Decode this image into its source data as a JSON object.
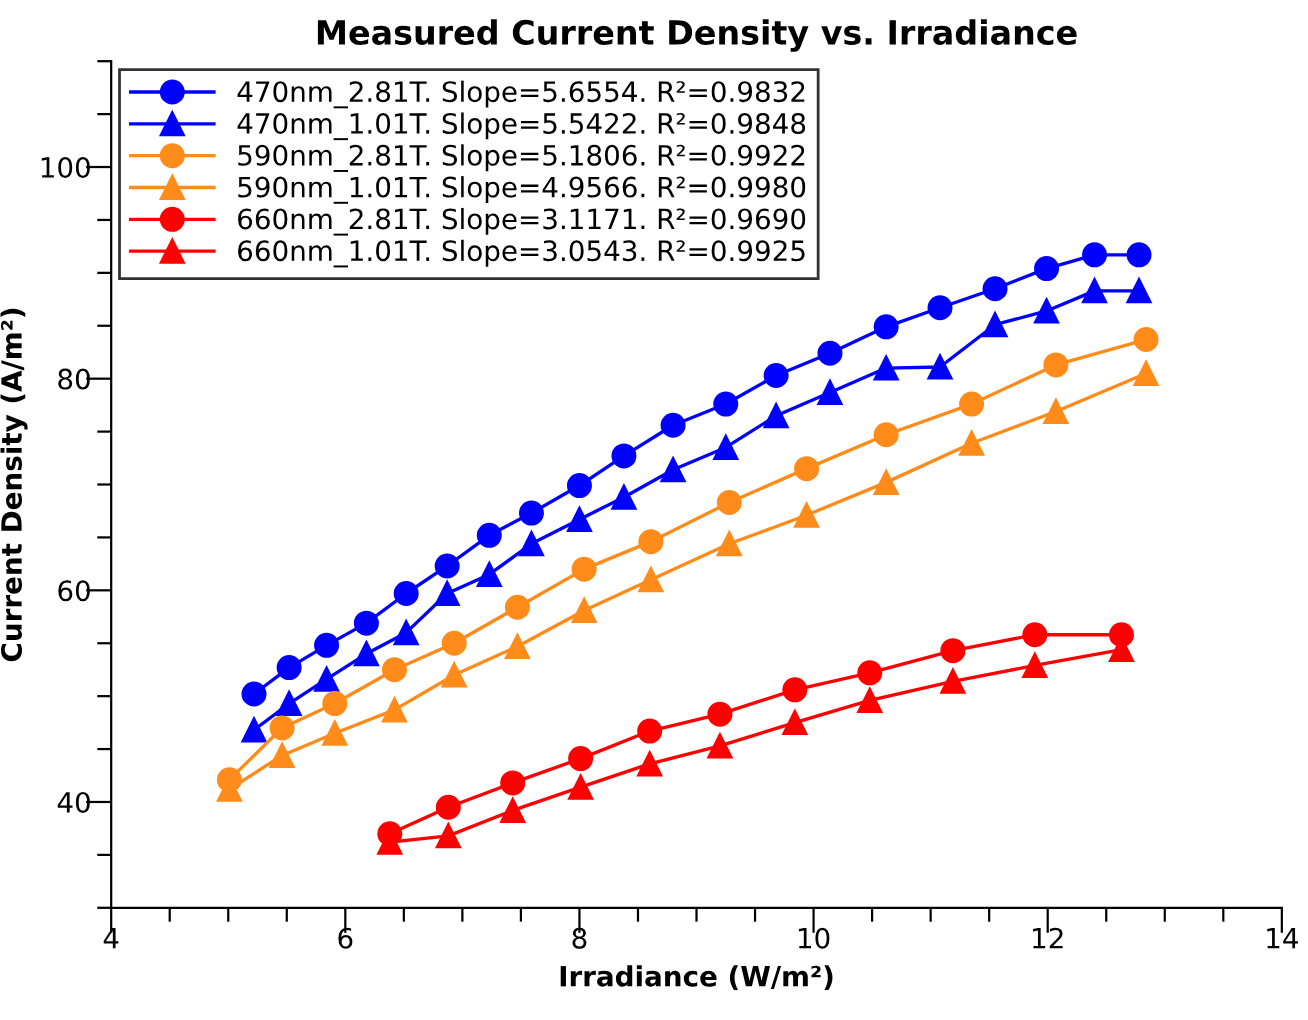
{
  "chart_data": {
    "type": "line",
    "title": "Measured Current Density vs. Irradiance",
    "xlabel": "Irradiance (W/m²)",
    "ylabel": "Current Density (A/m²)",
    "xlim": [
      4,
      14
    ],
    "xticks": [
      4,
      {
        "value": 4.5,
        "label": null
      },
      {
        "value": 5,
        "label": null
      },
      {
        "value": 5.5,
        "label": null
      },
      6,
      {
        "value": 6.5,
        "label": null
      },
      {
        "value": 7,
        "label": null
      },
      {
        "value": 7.5,
        "label": null
      },
      8,
      {
        "value": 8.5,
        "label": null
      },
      {
        "value": 9,
        "label": null
      },
      {
        "value": 9.5,
        "label": null
      },
      10,
      {
        "value": 10.5,
        "label": null
      },
      {
        "value": 11,
        "label": null
      },
      {
        "value": 11.5,
        "label": null
      },
      12,
      {
        "value": 12.5,
        "label": null
      },
      {
        "value": 13,
        "label": null
      },
      {
        "value": 13.5,
        "label": null
      },
      14
    ],
    "ylim": [
      30,
      110
    ],
    "yticks": [
      {
        "value": 30,
        "label": null
      },
      {
        "value": 35,
        "label": null
      },
      40,
      {
        "value": 45,
        "label": null
      },
      {
        "value": 50,
        "label": null
      },
      {
        "value": 55,
        "label": null
      },
      60,
      {
        "value": 65,
        "label": null
      },
      {
        "value": 70,
        "label": null
      },
      {
        "value": 75,
        "label": null
      },
      80,
      {
        "value": 85,
        "label": null
      },
      {
        "value": 90,
        "label": null
      },
      {
        "value": 95,
        "label": null
      },
      100,
      {
        "value": 105,
        "label": null
      },
      {
        "value": 110,
        "label": null
      }
    ],
    "grid": false,
    "legend": "top left",
    "line_style": "solid",
    "series": [
      {
        "name": "470nm_2.81T. Slope=5.6554. R²=0.9832",
        "color": "#0000ff",
        "marker": "circle",
        "x": [
          5.22,
          5.52,
          5.84,
          6.18,
          6.52,
          6.87,
          7.23,
          7.59,
          8.0,
          8.38,
          8.8,
          9.25,
          9.68,
          10.14,
          10.62,
          11.08,
          11.55,
          11.99,
          12.4,
          12.78
        ],
        "values": [
          50.2,
          52.7,
          54.8,
          56.9,
          59.7,
          62.3,
          65.2,
          67.3,
          69.9,
          72.7,
          75.6,
          77.6,
          80.3,
          82.4,
          84.9,
          86.7,
          88.5,
          90.4,
          91.7,
          91.7
        ]
      },
      {
        "name": "470nm_1.01T. Slope=5.5422. R²=0.9848",
        "color": "#0000ff",
        "marker": "triangle",
        "x": [
          5.22,
          5.52,
          5.84,
          6.18,
          6.52,
          6.87,
          7.23,
          7.59,
          8.0,
          8.38,
          8.8,
          9.25,
          9.68,
          10.14,
          10.62,
          11.08,
          11.55,
          11.99,
          12.4,
          12.78
        ],
        "values": [
          46.8,
          49.3,
          51.6,
          54.0,
          56.0,
          59.7,
          61.5,
          64.4,
          66.7,
          68.8,
          71.4,
          73.5,
          76.5,
          78.7,
          81.0,
          81.1,
          85.1,
          86.4,
          88.3,
          88.3
        ]
      },
      {
        "name": "590nm_2.81T. Slope=5.1806. R²=0.9922",
        "color": "#ff8c1a",
        "marker": "circle",
        "x": [
          5.01,
          5.46,
          5.91,
          6.42,
          6.93,
          7.47,
          8.04,
          8.61,
          9.28,
          9.94,
          10.62,
          11.35,
          12.07,
          12.84
        ],
        "values": [
          42.1,
          47.0,
          49.3,
          52.5,
          55.0,
          58.4,
          62.0,
          64.6,
          68.3,
          71.5,
          74.7,
          77.6,
          81.3,
          83.7
        ]
      },
      {
        "name": "590nm_1.01T. Slope=4.9566. R²=0.9980",
        "color": "#ff8c1a",
        "marker": "triangle",
        "x": [
          5.01,
          5.46,
          5.91,
          6.42,
          6.93,
          7.47,
          8.04,
          8.61,
          9.28,
          9.94,
          10.62,
          11.35,
          12.07,
          12.84
        ],
        "values": [
          41.2,
          44.4,
          46.5,
          48.7,
          52.0,
          54.7,
          58.1,
          61.0,
          64.4,
          67.1,
          70.2,
          73.9,
          76.9,
          80.5
        ]
      },
      {
        "name": "660nm_2.81T. Slope=3.1171. R²=0.9690",
        "color": "#ff0000",
        "marker": "circle",
        "x": [
          6.38,
          6.88,
          7.43,
          8.01,
          8.6,
          9.2,
          9.84,
          10.48,
          11.19,
          11.89,
          12.63
        ],
        "values": [
          37.0,
          39.5,
          41.8,
          44.1,
          46.7,
          48.3,
          50.6,
          52.2,
          54.3,
          55.8,
          55.8
        ]
      },
      {
        "name": "660nm_1.01T. Slope=3.0543. R²=0.9925",
        "color": "#ff0000",
        "marker": "triangle",
        "x": [
          6.38,
          6.88,
          7.43,
          8.01,
          8.6,
          9.2,
          9.84,
          10.48,
          11.19,
          11.89,
          12.63
        ],
        "values": [
          36.2,
          36.8,
          39.2,
          41.4,
          43.6,
          45.3,
          47.5,
          49.6,
          51.4,
          52.9,
          54.4
        ]
      }
    ]
  }
}
